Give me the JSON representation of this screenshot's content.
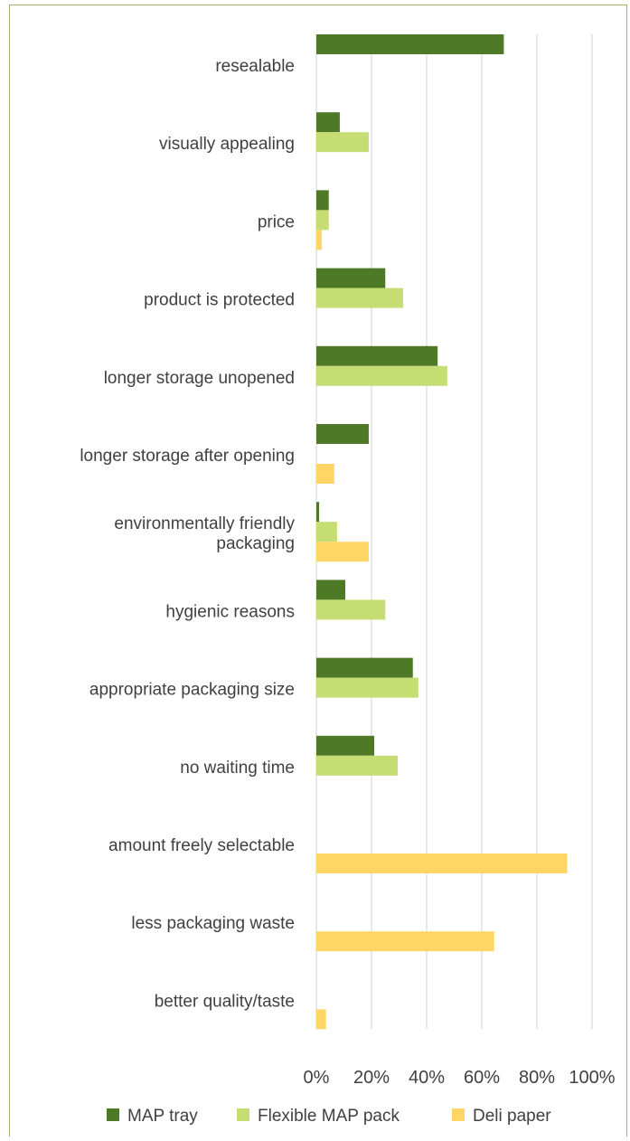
{
  "chart_data": {
    "type": "bar",
    "orientation": "horizontal",
    "title": "",
    "xlabel": "",
    "ylabel": "",
    "xlim": [
      0,
      100
    ],
    "x_ticks": [
      "0%",
      "20%",
      "40%",
      "60%",
      "80%",
      "100%"
    ],
    "grid": true,
    "legend_position": "bottom",
    "categories": [
      [
        "resealable"
      ],
      [
        "visually appealing"
      ],
      [
        "price"
      ],
      [
        "product is protected"
      ],
      [
        "longer storage unopened"
      ],
      [
        "longer storage after opening"
      ],
      [
        "environmentally friendly",
        "packaging"
      ],
      [
        "hygienic reasons"
      ],
      [
        "appropriate packaging size"
      ],
      [
        "no waiting time"
      ],
      [
        "amount freely selectable"
      ],
      [
        "less packaging waste"
      ],
      [
        "better quality/taste"
      ]
    ],
    "series": [
      {
        "name": "MAP tray",
        "color": "#4e7a27",
        "values": [
          68,
          8.5,
          4.5,
          25,
          44,
          19,
          1,
          10.5,
          35,
          21,
          0,
          0,
          0
        ]
      },
      {
        "name": "Flexible MAP pack",
        "color": "#c5dd72",
        "values": [
          0,
          19,
          4.5,
          31.5,
          47.5,
          0,
          7.5,
          25,
          37,
          29.5,
          0,
          0,
          0
        ]
      },
      {
        "name": "Deli paper",
        "color": "#ffd666",
        "values": [
          0,
          0,
          2,
          0,
          0,
          6.5,
          19,
          0,
          0,
          0,
          91,
          64.5,
          3.5
        ]
      }
    ]
  }
}
